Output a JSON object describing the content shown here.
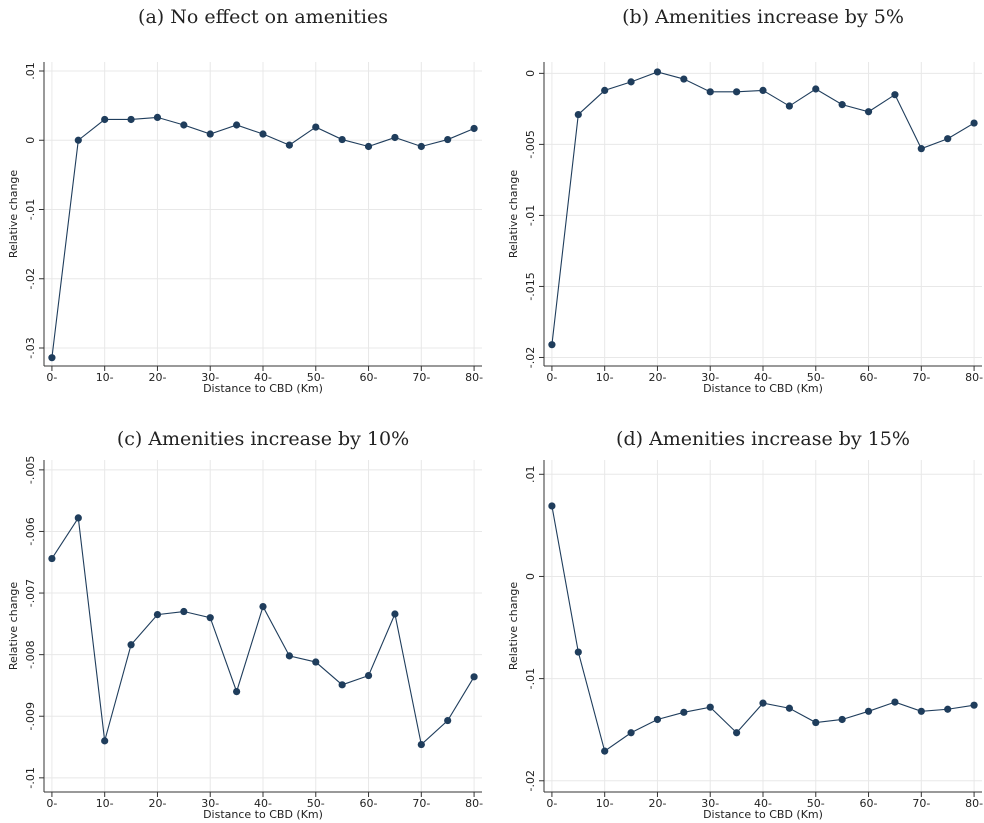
{
  "chart_data": [
    {
      "type": "line",
      "title": "(a) No effect on amenities",
      "x_label": "Distance to CBD (Km)",
      "y_label": "Relative change",
      "grid": true,
      "x": [
        0,
        5,
        10,
        15,
        20,
        25,
        30,
        35,
        40,
        45,
        50,
        55,
        60,
        65,
        70,
        75,
        80
      ],
      "xlim": [
        -1.5,
        81.5
      ],
      "xticks": [
        {
          "value": 0,
          "label": "0-"
        },
        {
          "value": 10,
          "label": "10-"
        },
        {
          "value": 20,
          "label": "20-"
        },
        {
          "value": 30,
          "label": "30-"
        },
        {
          "value": 40,
          "label": "40-"
        },
        {
          "value": 50,
          "label": "50-"
        },
        {
          "value": 60,
          "label": "60-"
        },
        {
          "value": 70,
          "label": "70-"
        },
        {
          "value": 80,
          "label": "80-"
        }
      ],
      "ylim": [
        -0.0326,
        0.0113
      ],
      "yticks": [
        {
          "value": -0.03,
          "label": "-.03"
        },
        {
          "value": -0.02,
          "label": "-.02"
        },
        {
          "value": -0.01,
          "label": "-.01"
        },
        0,
        {
          "value": 0.01,
          "label": ".01"
        }
      ],
      "series": [
        {
          "color": "#1f3d5c",
          "values": [
            -0.0314,
            0,
            0.003,
            0.003,
            0.0033,
            0.0022,
            0.0009,
            0.0022,
            0.0009,
            -0.0007,
            0.0019,
            0.0001,
            -0.0009,
            0.0004,
            -0.0009,
            0.0001,
            0.0017
          ]
        }
      ]
    },
    {
      "type": "line",
      "title": "(b) Amenities increase by 5%",
      "x_label": "Distance to CBD (Km)",
      "y_label": "Relative change",
      "grid": true,
      "x": [
        0,
        5,
        10,
        15,
        20,
        25,
        30,
        35,
        40,
        45,
        50,
        55,
        60,
        65,
        70,
        75,
        80
      ],
      "xlim": [
        -1.5,
        81.5
      ],
      "xticks": [
        {
          "value": 0,
          "label": "0-"
        },
        {
          "value": 10,
          "label": "10-"
        },
        {
          "value": 20,
          "label": "20-"
        },
        {
          "value": 30,
          "label": "30-"
        },
        {
          "value": 40,
          "label": "40-"
        },
        {
          "value": 50,
          "label": "50-"
        },
        {
          "value": 60,
          "label": "60-"
        },
        {
          "value": 70,
          "label": "70-"
        },
        {
          "value": 80,
          "label": "80-"
        }
      ],
      "ylim": [
        -0.0206,
        0.0008
      ],
      "yticks": [
        {
          "value": -0.02,
          "label": "-.02"
        },
        {
          "value": -0.015,
          "label": "-.015"
        },
        {
          "value": -0.01,
          "label": "-.01"
        },
        {
          "value": -0.005,
          "label": "-.005"
        },
        0
      ],
      "series": [
        {
          "color": "#1f3d5c",
          "values": [
            -0.0191,
            -0.0029,
            -0.0012,
            -0.0006,
            0.0001,
            -0.0004,
            -0.0013,
            -0.0013,
            -0.0012,
            -0.0023,
            -0.0011,
            -0.0022,
            -0.0027,
            -0.0015,
            -0.0053,
            -0.0046,
            -0.0035
          ]
        }
      ]
    },
    {
      "type": "line",
      "title": "(c) Amenities increase by 10%",
      "x_label": "Distance to CBD (Km)",
      "y_label": "Relative change",
      "grid": true,
      "x": [
        0,
        5,
        10,
        15,
        20,
        25,
        30,
        35,
        40,
        45,
        50,
        55,
        60,
        65,
        70,
        75,
        80
      ],
      "xlim": [
        -1.5,
        81.5
      ],
      "xticks": [
        {
          "value": 0,
          "label": "0-"
        },
        {
          "value": 10,
          "label": "10-"
        },
        {
          "value": 20,
          "label": "20-"
        },
        {
          "value": 30,
          "label": "30-"
        },
        {
          "value": 40,
          "label": "40-"
        },
        {
          "value": 50,
          "label": "50-"
        },
        {
          "value": 60,
          "label": "60-"
        },
        {
          "value": 70,
          "label": "70-"
        },
        {
          "value": 80,
          "label": "80-"
        }
      ],
      "ylim": [
        -0.01023,
        -0.00484
      ],
      "yticks": [
        {
          "value": -0.01,
          "label": "-.01"
        },
        {
          "value": -0.009,
          "label": "-.009"
        },
        {
          "value": -0.008,
          "label": "-.008"
        },
        {
          "value": -0.007,
          "label": "-.007"
        },
        {
          "value": -0.006,
          "label": "-.006"
        },
        {
          "value": -0.005,
          "label": "-.005"
        }
      ],
      "series": [
        {
          "color": "#1f3d5c",
          "values": [
            -0.00644,
            -0.00578,
            -0.0094,
            -0.00784,
            -0.00735,
            -0.0073,
            -0.0074,
            -0.0086,
            -0.00722,
            -0.00802,
            -0.00812,
            -0.00849,
            -0.00834,
            -0.00734,
            -0.00946,
            -0.00907,
            -0.00836
          ]
        }
      ]
    },
    {
      "type": "line",
      "title": "(d) Amenities increase by 15%",
      "x_label": "Distance to CBD (Km)",
      "y_label": "Relative change",
      "grid": true,
      "x": [
        0,
        5,
        10,
        15,
        20,
        25,
        30,
        35,
        40,
        45,
        50,
        55,
        60,
        65,
        70,
        75,
        80
      ],
      "xlim": [
        -1.5,
        81.5
      ],
      "xticks": [
        {
          "value": 0,
          "label": "0-"
        },
        {
          "value": 10,
          "label": "10-"
        },
        {
          "value": 20,
          "label": "20-"
        },
        {
          "value": 30,
          "label": "30-"
        },
        {
          "value": 40,
          "label": "40-"
        },
        {
          "value": 50,
          "label": "50-"
        },
        {
          "value": 60,
          "label": "60-"
        },
        {
          "value": 70,
          "label": "70-"
        },
        {
          "value": 80,
          "label": "80-"
        }
      ],
      "ylim": [
        -0.0211,
        0.0114
      ],
      "yticks": [
        {
          "value": -0.02,
          "label": "-.02"
        },
        {
          "value": -0.01,
          "label": "-.01"
        },
        0,
        {
          "value": 0.01,
          "label": ".01"
        }
      ],
      "series": [
        {
          "color": "#1f3d5c",
          "values": [
            0.0069,
            -0.0074,
            -0.0171,
            -0.0153,
            -0.014,
            -0.0133,
            -0.0128,
            -0.0153,
            -0.0124,
            -0.0129,
            -0.0143,
            -0.014,
            -0.0132,
            -0.0123,
            -0.0132,
            -0.013,
            -0.0126
          ]
        }
      ]
    }
  ]
}
